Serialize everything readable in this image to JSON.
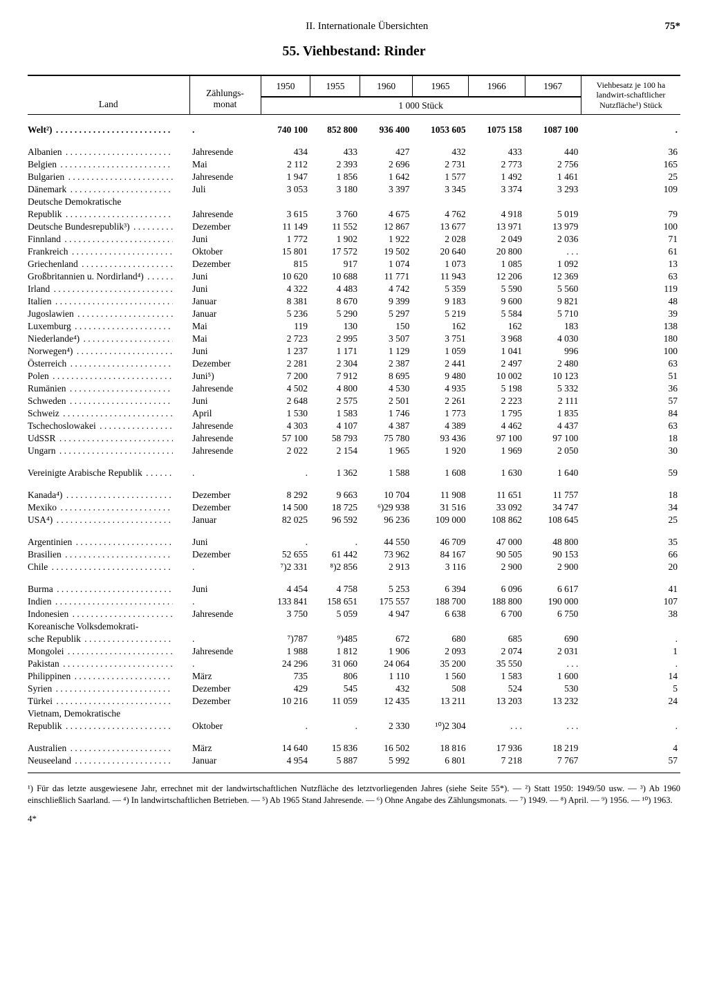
{
  "header": {
    "section": "II. Internationale Übersichten",
    "page": "75*"
  },
  "title": "55. Viehbestand: Rinder",
  "table": {
    "col_country": "Land",
    "col_month": "Zählungs-\nmonat",
    "years": [
      "1950",
      "1955",
      "1960",
      "1965",
      "1966",
      "1967"
    ],
    "unit_label": "1 000 Stück",
    "col_ratio": "Viehbesatz je 100 ha landwirt-schaftlicher Nutzfläche¹) Stück",
    "rows": [
      {
        "type": "bold",
        "country": "Welt²)",
        "month": ".",
        "v": [
          "740 100",
          "852 800",
          "936 400",
          "1053 605",
          "1075 158",
          "1087 100"
        ],
        "ratio": "."
      },
      {
        "type": "gap"
      },
      {
        "country": "Albanien",
        "month": "Jahresende",
        "v": [
          "434",
          "433",
          "427",
          "432",
          "433",
          "440"
        ],
        "ratio": "36"
      },
      {
        "country": "Belgien",
        "month": "Mai",
        "v": [
          "2 112",
          "2 393",
          "2 696",
          "2 731",
          "2 773",
          "2 756"
        ],
        "ratio": "165"
      },
      {
        "country": "Bulgarien",
        "month": "Jahresende",
        "v": [
          "1 947",
          "1 856",
          "1 642",
          "1 577",
          "1 492",
          "1 461"
        ],
        "ratio": "25"
      },
      {
        "country": "Dänemark",
        "month": "Juli",
        "v": [
          "3 053",
          "3 180",
          "3 397",
          "3 345",
          "3 374",
          "3 293"
        ],
        "ratio": "109"
      },
      {
        "country": "Deutsche Demokratische",
        "nodots": true,
        "month": "",
        "v": [
          "",
          "",
          "",
          "",
          "",
          ""
        ],
        "ratio": ""
      },
      {
        "country": "  Republik",
        "month": "Jahresende",
        "v": [
          "3 615",
          "3 760",
          "4 675",
          "4 762",
          "4 918",
          "5 019"
        ],
        "ratio": "79"
      },
      {
        "country": "Deutsche Bundesrepublik³)",
        "month": "Dezember",
        "v": [
          "11 149",
          "11 552",
          "12 867",
          "13 677",
          "13 971",
          "13 979"
        ],
        "ratio": "100"
      },
      {
        "country": "Finnland",
        "month": "Juni",
        "v": [
          "1 772",
          "1 902",
          "1 922",
          "2 028",
          "2 049",
          "2 036"
        ],
        "ratio": "71"
      },
      {
        "country": "Frankreich",
        "month": "Oktober",
        "v": [
          "15 801",
          "17 572",
          "19 502",
          "20 640",
          "20 800",
          ". . ."
        ],
        "ratio": "61"
      },
      {
        "country": "Griechenland",
        "month": "Dezember",
        "v": [
          "815",
          "917",
          "1 074",
          "1 073",
          "1 085",
          "1 092"
        ],
        "ratio": "13"
      },
      {
        "country": "Großbritannien u. Nordirland⁴)",
        "month": "Juni",
        "v": [
          "10 620",
          "10 688",
          "11 771",
          "11 943",
          "12 206",
          "12 369"
        ],
        "ratio": "63"
      },
      {
        "country": "Irland",
        "month": "Juni",
        "v": [
          "4 322",
          "4 483",
          "4 742",
          "5 359",
          "5 590",
          "5 560"
        ],
        "ratio": "119"
      },
      {
        "country": "Italien",
        "month": "Januar",
        "v": [
          "8 381",
          "8 670",
          "9 399",
          "9 183",
          "9 600",
          "9 821"
        ],
        "ratio": "48"
      },
      {
        "country": "Jugoslawien",
        "month": "Januar",
        "v": [
          "5 236",
          "5 290",
          "5 297",
          "5 219",
          "5 584",
          "5 710"
        ],
        "ratio": "39"
      },
      {
        "country": "Luxemburg",
        "month": "Mai",
        "v": [
          "119",
          "130",
          "150",
          "162",
          "162",
          "183"
        ],
        "ratio": "138"
      },
      {
        "country": "Niederlande⁴)",
        "month": "Mai",
        "v": [
          "2 723",
          "2 995",
          "3 507",
          "3 751",
          "3 968",
          "4 030"
        ],
        "ratio": "180"
      },
      {
        "country": "Norwegen⁴)",
        "month": "Juni",
        "v": [
          "1 237",
          "1 171",
          "1 129",
          "1 059",
          "1 041",
          "996"
        ],
        "ratio": "100"
      },
      {
        "country": "Österreich",
        "month": "Dezember",
        "v": [
          "2 281",
          "2 304",
          "2 387",
          "2 441",
          "2 497",
          "2 480"
        ],
        "ratio": "63"
      },
      {
        "country": "Polen",
        "month": "Juni⁵)",
        "v": [
          "7 200",
          "7 912",
          "8 695",
          "9 480",
          "10 002",
          "10 123"
        ],
        "ratio": "51"
      },
      {
        "country": "Rumänien",
        "month": "Jahresende",
        "v": [
          "4 502",
          "4 800",
          "4 530",
          "4 935",
          "5 198",
          "5 332"
        ],
        "ratio": "36"
      },
      {
        "country": "Schweden",
        "month": "Juni",
        "v": [
          "2 648",
          "2 575",
          "2 501",
          "2 261",
          "2 223",
          "2 111"
        ],
        "ratio": "57"
      },
      {
        "country": "Schweiz",
        "month": "April",
        "v": [
          "1 530",
          "1 583",
          "1 746",
          "1 773",
          "1 795",
          "1 835"
        ],
        "ratio": "84"
      },
      {
        "country": "Tschechoslowakei",
        "month": "Jahresende",
        "v": [
          "4 303",
          "4 107",
          "4 387",
          "4 389",
          "4 462",
          "4 437"
        ],
        "ratio": "63"
      },
      {
        "country": "UdSSR",
        "month": "Jahresende",
        "v": [
          "57 100",
          "58 793",
          "75 780",
          "93 436",
          "97 100",
          "97 100"
        ],
        "ratio": "18"
      },
      {
        "country": "Ungarn",
        "month": "Jahresende",
        "v": [
          "2 022",
          "2 154",
          "1 965",
          "1 920",
          "1 969",
          "2 050"
        ],
        "ratio": "30"
      },
      {
        "type": "gap"
      },
      {
        "country": "Vereinigte Arabische Republik",
        "month": ".",
        "v": [
          ".",
          "1 362",
          "1 588",
          "1 608",
          "1 630",
          "1 640"
        ],
        "ratio": "59"
      },
      {
        "type": "gap"
      },
      {
        "country": "Kanada⁴)",
        "month": "Dezember",
        "v": [
          "8 292",
          "9 663",
          "10 704",
          "11 908",
          "11 651",
          "11 757"
        ],
        "ratio": "18"
      },
      {
        "country": "Mexiko",
        "month": "Dezember",
        "v": [
          "14 500",
          "18 725",
          "⁶)29 938",
          "31 516",
          "33 092",
          "34 747"
        ],
        "ratio": "34"
      },
      {
        "country": "USA⁴)",
        "month": "Januar",
        "v": [
          "82 025",
          "96 592",
          "96 236",
          "109 000",
          "108 862",
          "108 645"
        ],
        "ratio": "25"
      },
      {
        "type": "gap"
      },
      {
        "country": "Argentinien",
        "month": "Juni",
        "v": [
          ".",
          ".",
          "44 550",
          "46 709",
          "47 000",
          "48 800"
        ],
        "ratio": "35"
      },
      {
        "country": "Brasilien",
        "month": "Dezember",
        "v": [
          "52 655",
          "61 442",
          "73 962",
          "84 167",
          "90 505",
          "90 153"
        ],
        "ratio": "66"
      },
      {
        "country": "Chile",
        "month": ".",
        "v": [
          "⁷)2 331",
          "⁸)2 856",
          "2 913",
          "3 116",
          "2 900",
          "2 900"
        ],
        "ratio": "20"
      },
      {
        "type": "gap"
      },
      {
        "country": "Burma",
        "month": "Juni",
        "v": [
          "4 454",
          "4 758",
          "5 253",
          "6 394",
          "6 096",
          "6 617"
        ],
        "ratio": "41"
      },
      {
        "country": "Indien",
        "month": ".",
        "v": [
          "133 841",
          "158 651",
          "175 557",
          "188 700",
          "188 800",
          "190 000"
        ],
        "ratio": "107"
      },
      {
        "country": "Indonesien",
        "month": "Jahresende",
        "v": [
          "3 750",
          "5 059",
          "4 947",
          "6 638",
          "6 700",
          "6 750"
        ],
        "ratio": "38"
      },
      {
        "country": "Koreanische Volksdemokrati-",
        "nodots": true,
        "month": "",
        "v": [
          "",
          "",
          "",
          "",
          "",
          ""
        ],
        "ratio": ""
      },
      {
        "country": "  sche Republik",
        "month": ".",
        "v": [
          "⁷)787",
          "⁹)485",
          "672",
          "680",
          "685",
          "690"
        ],
        "ratio": "."
      },
      {
        "country": "Mongolei",
        "month": "Jahresende",
        "v": [
          "1 988",
          "1 812",
          "1 906",
          "2 093",
          "2 074",
          "2 031"
        ],
        "ratio": "1"
      },
      {
        "country": "Pakistan",
        "month": ".",
        "v": [
          "24 296",
          "31 060",
          "24 064",
          "35 200",
          "35 550",
          ". . ."
        ],
        "ratio": "."
      },
      {
        "country": "Philippinen",
        "month": "März",
        "v": [
          "735",
          "806",
          "1 110",
          "1 560",
          "1 583",
          "1 600"
        ],
        "ratio": "14"
      },
      {
        "country": "Syrien",
        "month": "Dezember",
        "v": [
          "429",
          "545",
          "432",
          "508",
          "524",
          "530"
        ],
        "ratio": "5"
      },
      {
        "country": "Türkei",
        "month": "Dezember",
        "v": [
          "10 216",
          "11 059",
          "12 435",
          "13 211",
          "13 203",
          "13 232"
        ],
        "ratio": "24"
      },
      {
        "country": "Vietnam, Demokratische",
        "nodots": true,
        "month": "",
        "v": [
          "",
          "",
          "",
          "",
          "",
          ""
        ],
        "ratio": ""
      },
      {
        "country": "  Republik",
        "month": "Oktober",
        "v": [
          ".",
          ".",
          "2 330",
          "¹⁰)2 304",
          ". . .",
          ". . ."
        ],
        "ratio": "."
      },
      {
        "type": "gap"
      },
      {
        "country": "Australien",
        "month": "März",
        "v": [
          "14 640",
          "15 836",
          "16 502",
          "18 816",
          "17 936",
          "18 219"
        ],
        "ratio": "4"
      },
      {
        "country": "Neuseeland",
        "month": "Januar",
        "v": [
          "4 954",
          "5 887",
          "5 992",
          "6 801",
          "7 218",
          "7 767"
        ],
        "ratio": "57"
      }
    ]
  },
  "footnotes": "¹) Für das letzte ausgewiesene Jahr, errechnet mit der landwirtschaftlichen Nutzfläche des letztvorliegenden Jahres (siehe Seite 55*). — ²) Statt 1950: 1949/50 usw. — ³) Ab 1960 einschließlich Saarland. — ⁴) In landwirtschaftlichen Betrieben. — ⁵) Ab 1965 Stand Jahresende. — ⁶) Ohne Angabe des Zählungsmonats. — ⁷) 1949. — ⁸) April. — ⁹) 1956. — ¹⁰) 1963.",
  "signature": "4*"
}
